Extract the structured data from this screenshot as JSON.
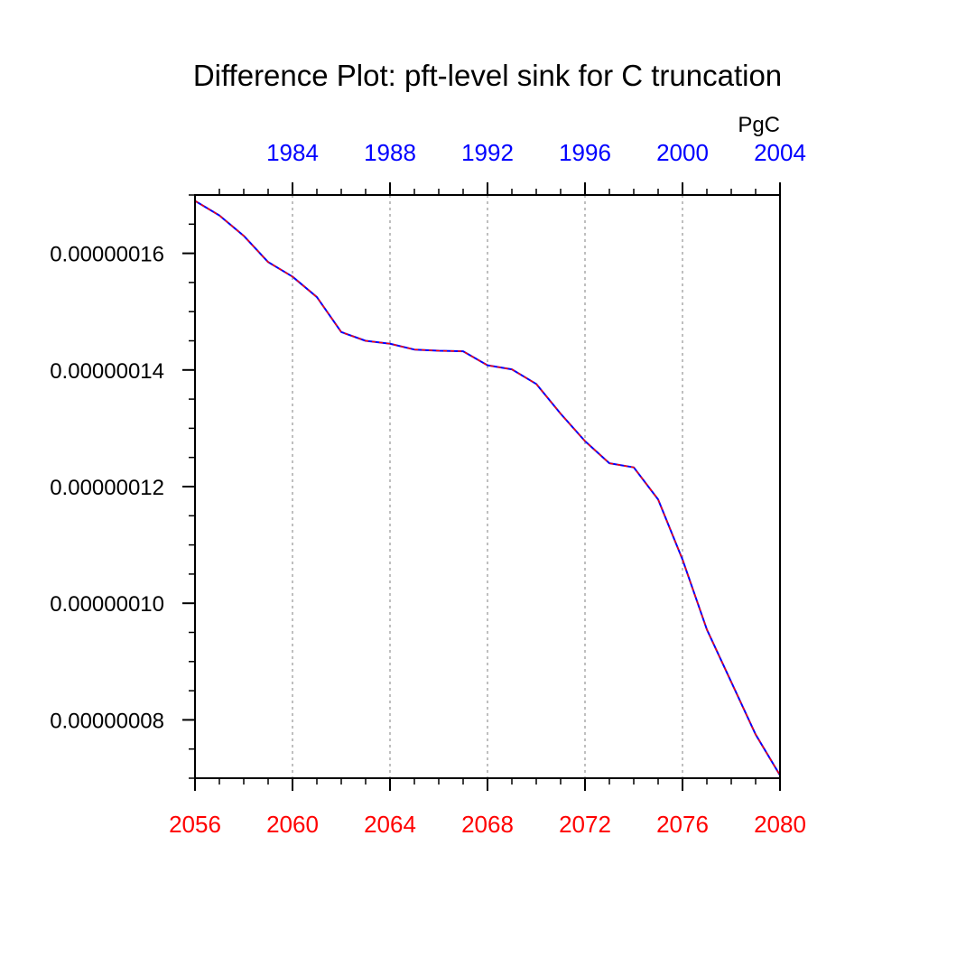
{
  "chart_data": {
    "type": "line",
    "title": "Difference Plot: pft-level sink for C truncation",
    "units_label": "PgC",
    "xlabel": "",
    "ylabel": "",
    "x_bottom": {
      "range": [
        2056,
        2080
      ],
      "tick_labels": [
        "2056",
        "2060",
        "2064",
        "2068",
        "2072",
        "2076",
        "2080"
      ],
      "label_color": "#ff0000"
    },
    "x_top": {
      "range": [
        1980,
        2004
      ],
      "tick_labels": [
        "1984",
        "1988",
        "1992",
        "1996",
        "2000",
        "2004"
      ],
      "label_color": "#0000ff"
    },
    "ylim": [
      7e-08,
      1.7e-07
    ],
    "y_tick_labels": [
      "0.00000008",
      "0.00000010",
      "0.00000012",
      "0.00000014",
      "0.00000016"
    ],
    "grid": "vertical dotted",
    "series": [
      {
        "color": "#0000ff",
        "dash_color": "#ff0000",
        "x": [
          2056,
          2057,
          2058,
          2059,
          2060,
          2061,
          2062,
          2063,
          2064,
          2065,
          2066,
          2067,
          2068,
          2069,
          2070,
          2071,
          2072,
          2073,
          2074,
          2075,
          2076,
          2077,
          2078,
          2079,
          2080
        ],
        "values": [
          1.69e-07,
          1.665e-07,
          1.63e-07,
          1.585e-07,
          1.56e-07,
          1.525e-07,
          1.465e-07,
          1.45e-07,
          1.445e-07,
          1.435e-07,
          1.433e-07,
          1.432e-07,
          1.408e-07,
          1.401e-07,
          1.376e-07,
          1.325e-07,
          1.278e-07,
          1.24e-07,
          1.233e-07,
          1.178e-07,
          1.075e-07,
          9.55e-08,
          8.65e-08,
          7.75e-08,
          7.05e-08
        ]
      }
    ]
  }
}
